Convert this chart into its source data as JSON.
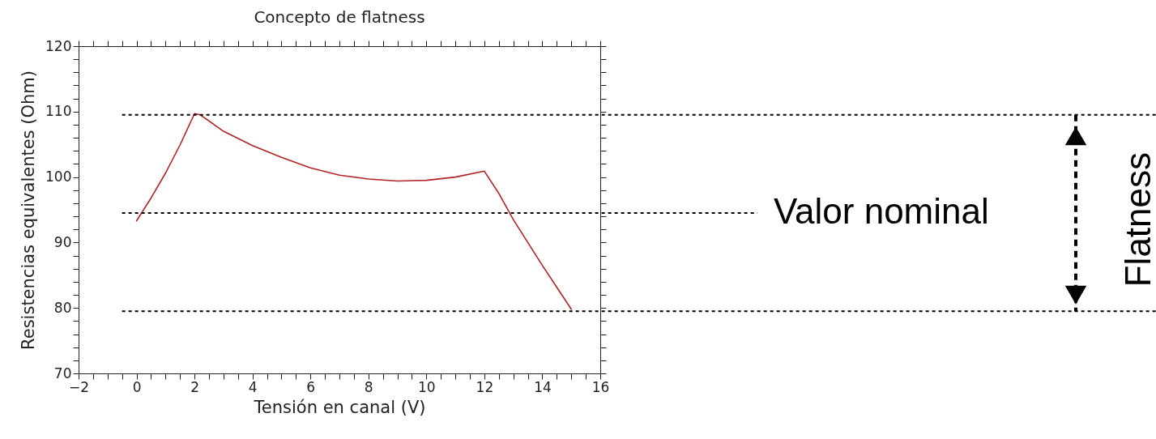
{
  "chart_data": {
    "type": "line",
    "title": "Concepto de flatness",
    "xlabel": "Tensión en canal (V)",
    "ylabel": "Resistencias equivalentes (Ohm)",
    "x": [
      0,
      0.5,
      1,
      1.5,
      2,
      2.2,
      3,
      4,
      5,
      6,
      7,
      8,
      9,
      10,
      11,
      12,
      12.5,
      13,
      14,
      15
    ],
    "values": [
      93.3,
      96.8,
      100.6,
      104.9,
      109.7,
      109.5,
      107,
      104.8,
      103,
      101.4,
      100.3,
      99.7,
      99.4,
      99.5,
      100,
      100.9,
      97.5,
      93.5,
      86.5,
      79.8
    ],
    "color": "#b22222",
    "xlim": [
      -2,
      16
    ],
    "xticks": [
      {
        "value": -2,
        "label": "−2"
      },
      {
        "value": -1.5,
        "label": null
      },
      {
        "value": -1,
        "label": null
      },
      {
        "value": -0.5,
        "label": null
      },
      0,
      {
        "value": 0.5,
        "label": null
      },
      {
        "value": 1,
        "label": null
      },
      {
        "value": 1.5,
        "label": null
      },
      2,
      {
        "value": 2.5,
        "label": null
      },
      {
        "value": 3,
        "label": null
      },
      {
        "value": 3.5,
        "label": null
      },
      4,
      {
        "value": 4.5,
        "label": null
      },
      {
        "value": 5,
        "label": null
      },
      {
        "value": 5.5,
        "label": null
      },
      6,
      {
        "value": 6.5,
        "label": null
      },
      {
        "value": 7,
        "label": null
      },
      {
        "value": 7.5,
        "label": null
      },
      8,
      {
        "value": 8.5,
        "label": null
      },
      {
        "value": 9,
        "label": null
      },
      {
        "value": 9.5,
        "label": null
      },
      10,
      {
        "value": 10.5,
        "label": null
      },
      {
        "value": 11,
        "label": null
      },
      {
        "value": 11.5,
        "label": null
      },
      12,
      {
        "value": 12.5,
        "label": null
      },
      {
        "value": 13,
        "label": null
      },
      {
        "value": 13.5,
        "label": null
      },
      14,
      {
        "value": 14.5,
        "label": null
      },
      {
        "value": 15,
        "label": null
      },
      {
        "value": 15.5,
        "label": null
      },
      16
    ],
    "ylim": [
      70,
      120
    ],
    "yticks": [
      70,
      {
        "value": 72,
        "label": null
      },
      {
        "value": 74,
        "label": null
      },
      {
        "value": 76,
        "label": null
      },
      {
        "value": 78,
        "label": null
      },
      80,
      {
        "value": 82,
        "label": null
      },
      {
        "value": 84,
        "label": null
      },
      {
        "value": 86,
        "label": null
      },
      {
        "value": 88,
        "label": null
      },
      90,
      {
        "value": 92,
        "label": null
      },
      {
        "value": 94,
        "label": null
      },
      {
        "value": 96,
        "label": null
      },
      {
        "value": 98,
        "label": null
      },
      100,
      {
        "value": 102,
        "label": null
      },
      {
        "value": 104,
        "label": null
      },
      {
        "value": 106,
        "label": null
      },
      {
        "value": 108,
        "label": null
      },
      110,
      {
        "value": 112,
        "label": null
      },
      {
        "value": 114,
        "label": null
      },
      {
        "value": 116,
        "label": null
      },
      {
        "value": 118,
        "label": null
      },
      120
    ],
    "grid": false,
    "ref_lines": [
      {
        "axis": "y",
        "value": 109.5,
        "color": "#000000",
        "line_style": "dashed"
      },
      {
        "axis": "y",
        "value": 94.5,
        "label": "Valor nominal",
        "color": "#000000",
        "line_style": "dashed"
      },
      {
        "axis": "y",
        "value": 79.5,
        "color": "#000000",
        "line_style": "dashed"
      }
    ],
    "annotations": [
      "Flatness"
    ]
  }
}
